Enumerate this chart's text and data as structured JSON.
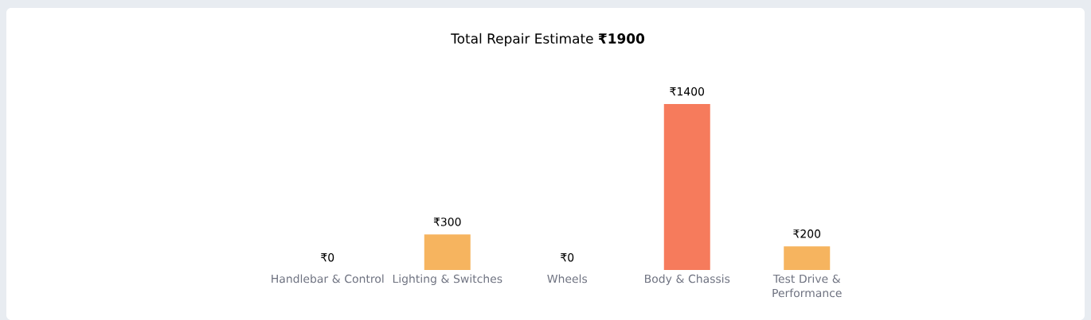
{
  "chart_data": {
    "type": "bar",
    "title": "Total Repair Estimate **₹1900**",
    "categories": [
      "Handlebar & Control",
      "Lighting & Switches",
      "Wheels",
      "Body & Chassis",
      "Test Drive & Performance"
    ],
    "values": [
      0,
      300,
      0,
      1400,
      200
    ],
    "colors": [
      "#f4b35e",
      "#f6b45f",
      "#f3d35a",
      "#f67b5c",
      "#f6b45f"
    ],
    "value_labels": [
      "₹0",
      "₹300",
      "₹0",
      "₹1400",
      "₹200"
    ]
  }
}
